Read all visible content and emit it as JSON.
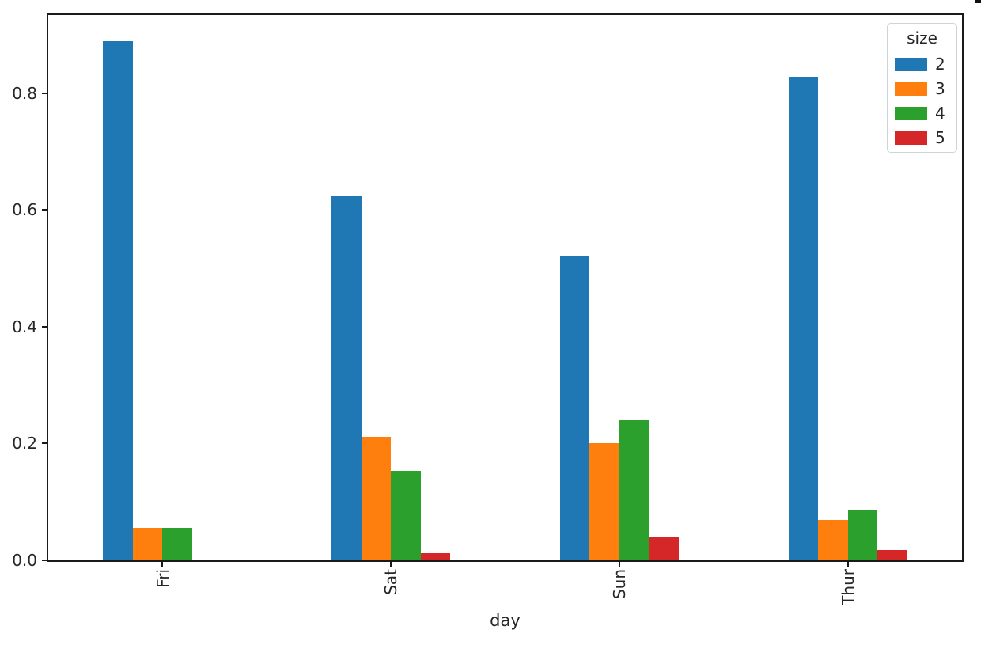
{
  "figure": {
    "background": "#ffffff"
  },
  "chart_data": {
    "type": "bar",
    "title": "",
    "xlabel": "day",
    "ylabel": "",
    "categories": [
      "Fri",
      "Sat",
      "Sun",
      "Thur"
    ],
    "legend": {
      "title": "size",
      "position": "upper right",
      "entries": [
        "2",
        "3",
        "4",
        "5"
      ]
    },
    "series": [
      {
        "name": "2",
        "color": "#1f77b4",
        "values": [
          0.889,
          0.624,
          0.52,
          0.828
        ]
      },
      {
        "name": "3",
        "color": "#ff7f0e",
        "values": [
          0.056,
          0.212,
          0.2,
          0.069
        ]
      },
      {
        "name": "4",
        "color": "#2ca02c",
        "values": [
          0.056,
          0.153,
          0.24,
          0.086
        ]
      },
      {
        "name": "5",
        "color": "#d62728",
        "values": [
          0.0,
          0.012,
          0.04,
          0.017
        ]
      }
    ],
    "ylim": [
      0,
      0.934
    ],
    "yticks": {
      "values": [
        0.0,
        0.2,
        0.4,
        0.6,
        0.8
      ],
      "labels": [
        "0.0",
        "0.2",
        "0.4",
        "0.6",
        "0.8"
      ]
    },
    "grid": false,
    "bars_per_group": 4,
    "group_fraction_filled": 0.52
  },
  "colors": {
    "spine": "#1a1a1a",
    "text": "#262626",
    "legend_border": "#ccd4da"
  }
}
